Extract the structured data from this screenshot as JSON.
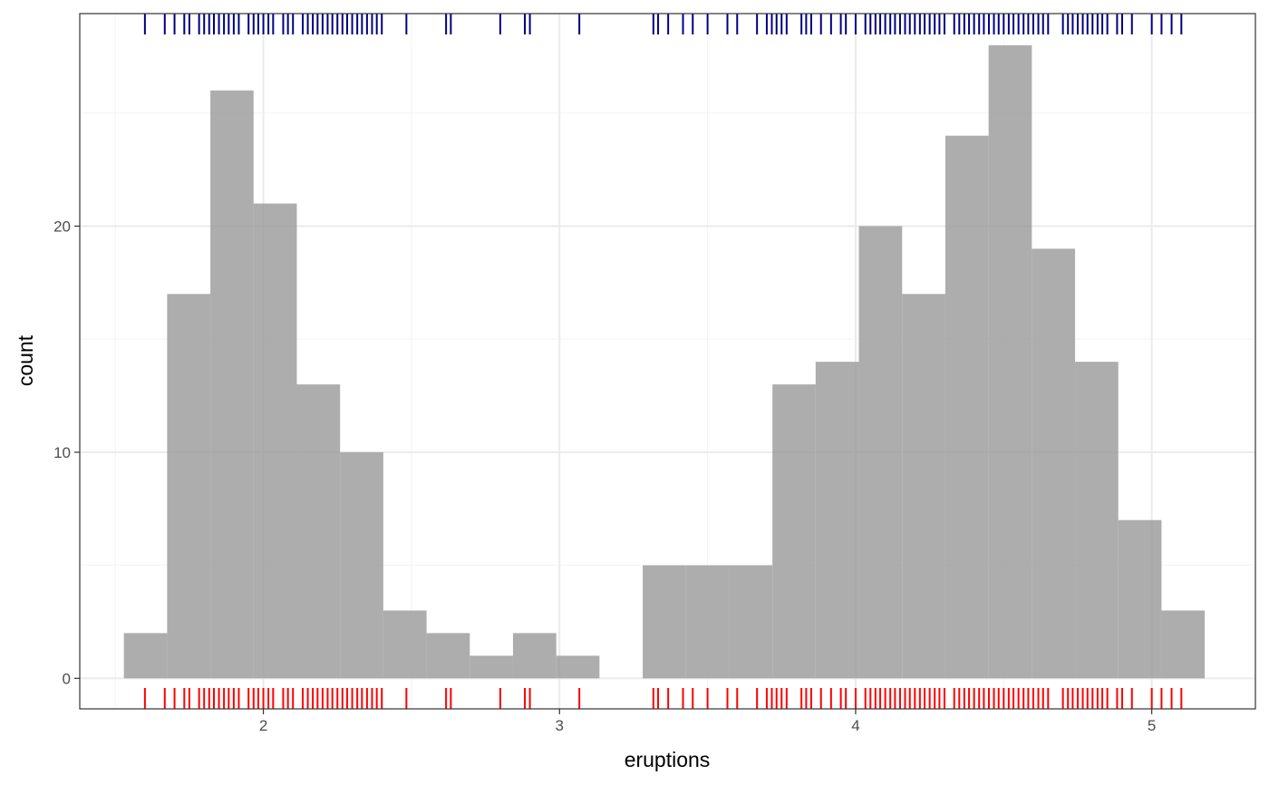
{
  "chart_data": {
    "type": "bar",
    "title": "",
    "xlabel": "eruptions",
    "ylabel": "count",
    "xlim": [
      1.38,
      5.35
    ],
    "ylim": [
      -1.35,
      29.4
    ],
    "x_ticks": [
      2,
      3,
      4,
      5
    ],
    "y_ticks": [
      0,
      10,
      20
    ],
    "grid": true,
    "bin_width": 0.146,
    "bins": [
      {
        "x0": 1.529,
        "x1": 1.675,
        "count": 2
      },
      {
        "x0": 1.675,
        "x1": 1.821,
        "count": 17
      },
      {
        "x0": 1.821,
        "x1": 1.967,
        "count": 26
      },
      {
        "x0": 1.967,
        "x1": 2.113,
        "count": 21
      },
      {
        "x0": 2.113,
        "x1": 2.259,
        "count": 13
      },
      {
        "x0": 2.259,
        "x1": 2.405,
        "count": 10
      },
      {
        "x0": 2.405,
        "x1": 2.551,
        "count": 3
      },
      {
        "x0": 2.551,
        "x1": 2.697,
        "count": 2
      },
      {
        "x0": 2.697,
        "x1": 2.843,
        "count": 1
      },
      {
        "x0": 2.843,
        "x1": 2.989,
        "count": 2
      },
      {
        "x0": 2.989,
        "x1": 3.135,
        "count": 1
      },
      {
        "x0": 3.135,
        "x1": 3.281,
        "count": 0
      },
      {
        "x0": 3.281,
        "x1": 3.427,
        "count": 5
      },
      {
        "x0": 3.427,
        "x1": 3.573,
        "count": 5
      },
      {
        "x0": 3.573,
        "x1": 3.719,
        "count": 5
      },
      {
        "x0": 3.719,
        "x1": 3.865,
        "count": 13
      },
      {
        "x0": 3.865,
        "x1": 4.011,
        "count": 14
      },
      {
        "x0": 4.011,
        "x1": 4.157,
        "count": 20
      },
      {
        "x0": 4.157,
        "x1": 4.303,
        "count": 17
      },
      {
        "x0": 4.303,
        "x1": 4.449,
        "count": 24
      },
      {
        "x0": 4.449,
        "x1": 4.595,
        "count": 28
      },
      {
        "x0": 4.595,
        "x1": 4.741,
        "count": 19
      },
      {
        "x0": 4.741,
        "x1": 4.887,
        "count": 14
      },
      {
        "x0": 4.887,
        "x1": 5.033,
        "count": 7
      },
      {
        "x0": 5.033,
        "x1": 5.179,
        "count": 3
      }
    ],
    "rug_values": [
      1.6,
      1.667,
      1.7,
      1.733,
      1.75,
      1.783,
      1.8,
      1.817,
      1.833,
      1.85,
      1.867,
      1.883,
      1.9,
      1.917,
      1.95,
      1.967,
      1.983,
      2.0,
      2.017,
      2.033,
      2.067,
      2.083,
      2.1,
      2.133,
      2.15,
      2.167,
      2.183,
      2.2,
      2.217,
      2.233,
      2.25,
      2.267,
      2.283,
      2.3,
      2.317,
      2.333,
      2.35,
      2.367,
      2.383,
      2.4,
      2.483,
      2.617,
      2.633,
      2.8,
      2.883,
      2.9,
      3.067,
      3.317,
      3.333,
      3.367,
      3.417,
      3.45,
      3.5,
      3.567,
      3.6,
      3.667,
      3.7,
      3.717,
      3.733,
      3.75,
      3.767,
      3.817,
      3.833,
      3.85,
      3.883,
      3.917,
      3.95,
      3.967,
      4.0,
      4.033,
      4.05,
      4.067,
      4.083,
      4.1,
      4.117,
      4.133,
      4.15,
      4.167,
      4.183,
      4.2,
      4.217,
      4.233,
      4.25,
      4.267,
      4.283,
      4.3,
      4.333,
      4.35,
      4.367,
      4.383,
      4.4,
      4.417,
      4.433,
      4.45,
      4.467,
      4.483,
      4.5,
      4.517,
      4.533,
      4.55,
      4.567,
      4.583,
      4.6,
      4.617,
      4.633,
      4.65,
      4.7,
      4.717,
      4.733,
      4.75,
      4.767,
      4.783,
      4.8,
      4.817,
      4.833,
      4.85,
      4.883,
      4.9,
      4.933,
      5.0,
      5.033,
      5.067,
      5.1
    ],
    "colors": {
      "bar_fill": "#999999",
      "bar_opacity": 0.8,
      "rug_top": "#000080",
      "rug_bottom": "#ff0000",
      "grid_major": "#ebebeb",
      "grid_minor": "#f3f3f3",
      "panel_border": "#333333",
      "tick_text": "#4d4d4d"
    }
  }
}
